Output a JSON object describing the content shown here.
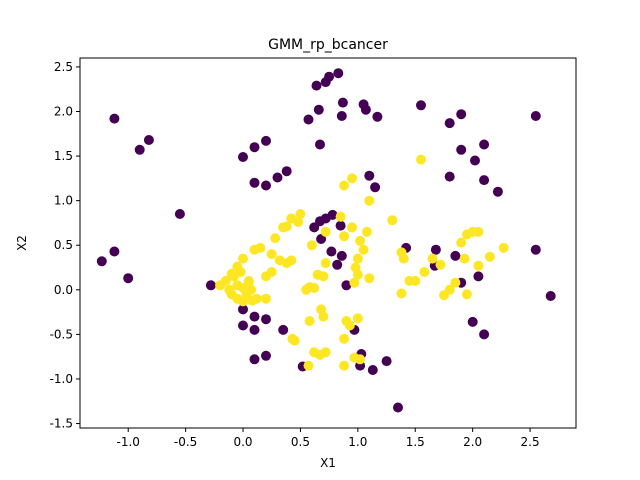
{
  "chart_data": {
    "type": "scatter",
    "title": "GMM_rp_bcancer",
    "xlabel": "X1",
    "ylabel": "X2",
    "xlim": [
      -1.42,
      2.9
    ],
    "ylim": [
      -1.55,
      2.6
    ],
    "xticks": [
      "-1.0",
      "-0.5",
      "0.0",
      "0.5",
      "1.0",
      "1.5",
      "2.0",
      "2.5"
    ],
    "xtick_values": [
      -1.0,
      -0.5,
      0.0,
      0.5,
      1.0,
      1.5,
      2.0,
      2.5
    ],
    "yticks": [
      "-1.5",
      "-1.0",
      "-0.5",
      "0.0",
      "0.5",
      "1.0",
      "1.5",
      "2.0",
      "2.5"
    ],
    "ytick_values": [
      -1.5,
      -1.0,
      -0.5,
      0.0,
      0.5,
      1.0,
      1.5,
      2.0,
      2.5
    ],
    "grid": false,
    "series": [
      {
        "color": "#440154",
        "points": [
          [
            -1.23,
            0.32
          ],
          [
            -1.12,
            0.43
          ],
          [
            -1.12,
            1.92
          ],
          [
            -1.0,
            0.13
          ],
          [
            -0.9,
            1.57
          ],
          [
            -0.82,
            1.68
          ],
          [
            -0.55,
            0.85
          ],
          [
            -0.28,
            0.05
          ],
          [
            0.0,
            1.49
          ],
          [
            0.1,
            1.6
          ],
          [
            0.1,
            1.2
          ],
          [
            0.2,
            1.67
          ],
          [
            0.2,
            1.17
          ],
          [
            0.3,
            1.26
          ],
          [
            0.38,
            1.33
          ],
          [
            0.0,
            -0.4
          ],
          [
            0.0,
            -0.22
          ],
          [
            0.1,
            -0.3
          ],
          [
            0.1,
            -0.45
          ],
          [
            0.2,
            -0.33
          ],
          [
            0.1,
            -0.78
          ],
          [
            0.2,
            -0.74
          ],
          [
            0.35,
            -0.45
          ],
          [
            0.52,
            -0.86
          ],
          [
            0.62,
            0.7
          ],
          [
            0.67,
            0.77
          ],
          [
            0.72,
            0.8
          ],
          [
            0.78,
            0.84
          ],
          [
            0.68,
            0.57
          ],
          [
            0.77,
            0.43
          ],
          [
            0.82,
            0.28
          ],
          [
            0.86,
            0.38
          ],
          [
            0.85,
            0.72
          ],
          [
            0.64,
            2.29
          ],
          [
            0.72,
            2.33
          ],
          [
            0.75,
            2.39
          ],
          [
            0.83,
            2.43
          ],
          [
            0.87,
            2.1
          ],
          [
            0.66,
            2.02
          ],
          [
            0.86,
            1.95
          ],
          [
            1.05,
            2.08
          ],
          [
            1.07,
            2.02
          ],
          [
            1.17,
            1.94
          ],
          [
            0.57,
            1.91
          ],
          [
            0.67,
            1.63
          ],
          [
            1.1,
            1.28
          ],
          [
            1.15,
            1.15
          ],
          [
            0.97,
            -0.45
          ],
          [
            1.02,
            -0.85
          ],
          [
            1.03,
            -0.72
          ],
          [
            1.13,
            -0.9
          ],
          [
            1.25,
            -0.8
          ],
          [
            1.35,
            -1.32
          ],
          [
            1.42,
            0.47
          ],
          [
            1.55,
            2.07
          ],
          [
            1.68,
            0.45
          ],
          [
            1.67,
            0.27
          ],
          [
            1.8,
            1.27
          ],
          [
            1.8,
            1.87
          ],
          [
            1.9,
            1.97
          ],
          [
            1.9,
            1.57
          ],
          [
            1.85,
            0.38
          ],
          [
            1.9,
            0.08
          ],
          [
            2.0,
            -0.36
          ],
          [
            2.1,
            -0.5
          ],
          [
            2.05,
            0.15
          ],
          [
            2.02,
            1.45
          ],
          [
            2.1,
            1.63
          ],
          [
            2.1,
            1.23
          ],
          [
            2.22,
            1.1
          ],
          [
            2.55,
            0.45
          ],
          [
            2.55,
            1.95
          ],
          [
            2.68,
            -0.07
          ],
          [
            0.9,
            0.05
          ]
        ]
      },
      {
        "color": "#fde725",
        "points": [
          [
            -0.15,
            0.1
          ],
          [
            -0.12,
            0.0
          ],
          [
            -0.1,
            -0.05
          ],
          [
            -0.08,
            0.15
          ],
          [
            -0.05,
            0.05
          ],
          [
            -0.05,
            -0.1
          ],
          [
            0.0,
            0.02
          ],
          [
            0.03,
            -0.05
          ],
          [
            0.05,
            0.08
          ],
          [
            -0.02,
            0.2
          ],
          [
            -0.1,
            0.18
          ],
          [
            0.07,
            0.0
          ],
          [
            -0.2,
            0.05
          ],
          [
            0.05,
            0.1
          ],
          [
            0.0,
            -0.13
          ],
          [
            0.08,
            -0.12
          ],
          [
            0.12,
            -0.1
          ],
          [
            -0.05,
            0.26
          ],
          [
            0.0,
            0.35
          ],
          [
            0.15,
            0.47
          ],
          [
            0.2,
            0.15
          ],
          [
            0.25,
            0.2
          ],
          [
            0.28,
            0.58
          ],
          [
            0.32,
            0.33
          ],
          [
            0.38,
            0.3
          ],
          [
            0.42,
            0.33
          ],
          [
            0.38,
            0.71
          ],
          [
            0.42,
            0.8
          ],
          [
            0.48,
            0.76
          ],
          [
            0.5,
            0.85
          ],
          [
            0.55,
            0.0
          ],
          [
            0.58,
            0.03
          ],
          [
            0.62,
            0.02
          ],
          [
            0.65,
            0.17
          ],
          [
            0.7,
            0.15
          ],
          [
            0.72,
            0.65
          ],
          [
            0.7,
            -0.3
          ],
          [
            0.68,
            -0.22
          ],
          [
            0.58,
            -0.35
          ],
          [
            0.62,
            -0.7
          ],
          [
            0.72,
            -0.7
          ],
          [
            0.67,
            -0.73
          ],
          [
            0.57,
            -0.85
          ],
          [
            0.9,
            -0.35
          ],
          [
            0.88,
            -0.55
          ],
          [
            0.93,
            -0.4
          ],
          [
            0.97,
            -0.76
          ],
          [
            1.02,
            -0.78
          ],
          [
            0.88,
            -0.85
          ],
          [
            1.0,
            -0.32
          ],
          [
            0.97,
            0.08
          ],
          [
            1.0,
            0.35
          ],
          [
            1.02,
            0.55
          ],
          [
            1.08,
            0.65
          ],
          [
            0.95,
            0.7
          ],
          [
            0.85,
            0.82
          ],
          [
            0.88,
            1.17
          ],
          [
            0.95,
            1.25
          ],
          [
            1.1,
            1.0
          ],
          [
            1.05,
            0.45
          ],
          [
            1.1,
            0.13
          ],
          [
            1.0,
            0.17
          ],
          [
            0.98,
            0.25
          ],
          [
            0.88,
            0.6
          ],
          [
            1.3,
            0.78
          ],
          [
            1.38,
            0.42
          ],
          [
            1.4,
            0.35
          ],
          [
            1.45,
            0.1
          ],
          [
            1.5,
            0.1
          ],
          [
            1.38,
            -0.04
          ],
          [
            1.55,
            1.46
          ],
          [
            1.58,
            0.2
          ],
          [
            1.65,
            0.35
          ],
          [
            1.72,
            0.28
          ],
          [
            1.75,
            -0.06
          ],
          [
            1.8,
            0.0
          ],
          [
            1.85,
            0.08
          ],
          [
            1.9,
            0.53
          ],
          [
            1.95,
            0.62
          ],
          [
            2.0,
            0.65
          ],
          [
            2.05,
            0.65
          ],
          [
            2.15,
            0.37
          ],
          [
            2.05,
            0.27
          ],
          [
            2.27,
            0.47
          ],
          [
            1.95,
            -0.05
          ],
          [
            1.93,
            0.35
          ],
          [
            0.2,
            -0.1
          ],
          [
            0.45,
            -0.57
          ],
          [
            0.43,
            -0.55
          ],
          [
            0.72,
            0.3
          ],
          [
            0.1,
            0.45
          ],
          [
            0.35,
            0.7
          ],
          [
            0.25,
            0.4
          ],
          [
            0.6,
            0.5
          ]
        ]
      }
    ]
  }
}
